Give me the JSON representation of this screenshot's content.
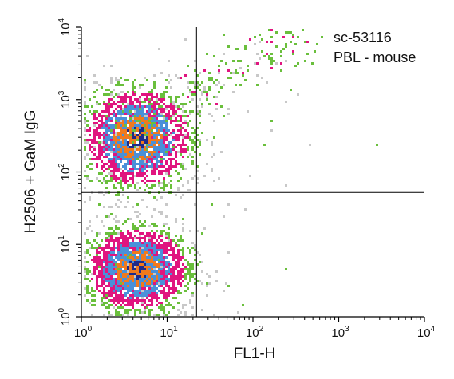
{
  "chart_data": {
    "type": "scatter",
    "title": "",
    "xlabel": "FL1-H",
    "ylabel": "H2506 + GaM IgG",
    "x_scale": "log",
    "y_scale": "log",
    "xlim": [
      1,
      10000
    ],
    "ylim": [
      1,
      10000
    ],
    "grid": false,
    "x_ticks": [
      {
        "base": "10",
        "exp": "0"
      },
      {
        "base": "10",
        "exp": "1"
      },
      {
        "base": "10",
        "exp": "2"
      },
      {
        "base": "10",
        "exp": "3"
      },
      {
        "base": "10",
        "exp": "4"
      }
    ],
    "y_ticks": [
      {
        "base": "10",
        "exp": "0"
      },
      {
        "base": "10",
        "exp": "1"
      },
      {
        "base": "10",
        "exp": "2"
      },
      {
        "base": "10",
        "exp": "3"
      },
      {
        "base": "10",
        "exp": "4"
      }
    ],
    "annotations": [
      "sc-53116",
      "PBL - mouse"
    ],
    "quadrant_gates": {
      "x": 22,
      "y": 52
    },
    "density_colors": [
      "#c8c8c8",
      "#6abf3c",
      "#e0157f",
      "#4a90d9",
      "#f07a1e",
      "#1e2a8a"
    ],
    "populations": [
      {
        "center": [
          4.5,
          4.5
        ],
        "spread": [
          0.28,
          0.27
        ]
      },
      {
        "center": [
          4.5,
          290
        ],
        "spread": [
          0.3,
          0.32
        ]
      },
      {
        "center": [
          30,
          1000
        ],
        "spread": [
          0.45,
          0.35
        ]
      }
    ]
  }
}
